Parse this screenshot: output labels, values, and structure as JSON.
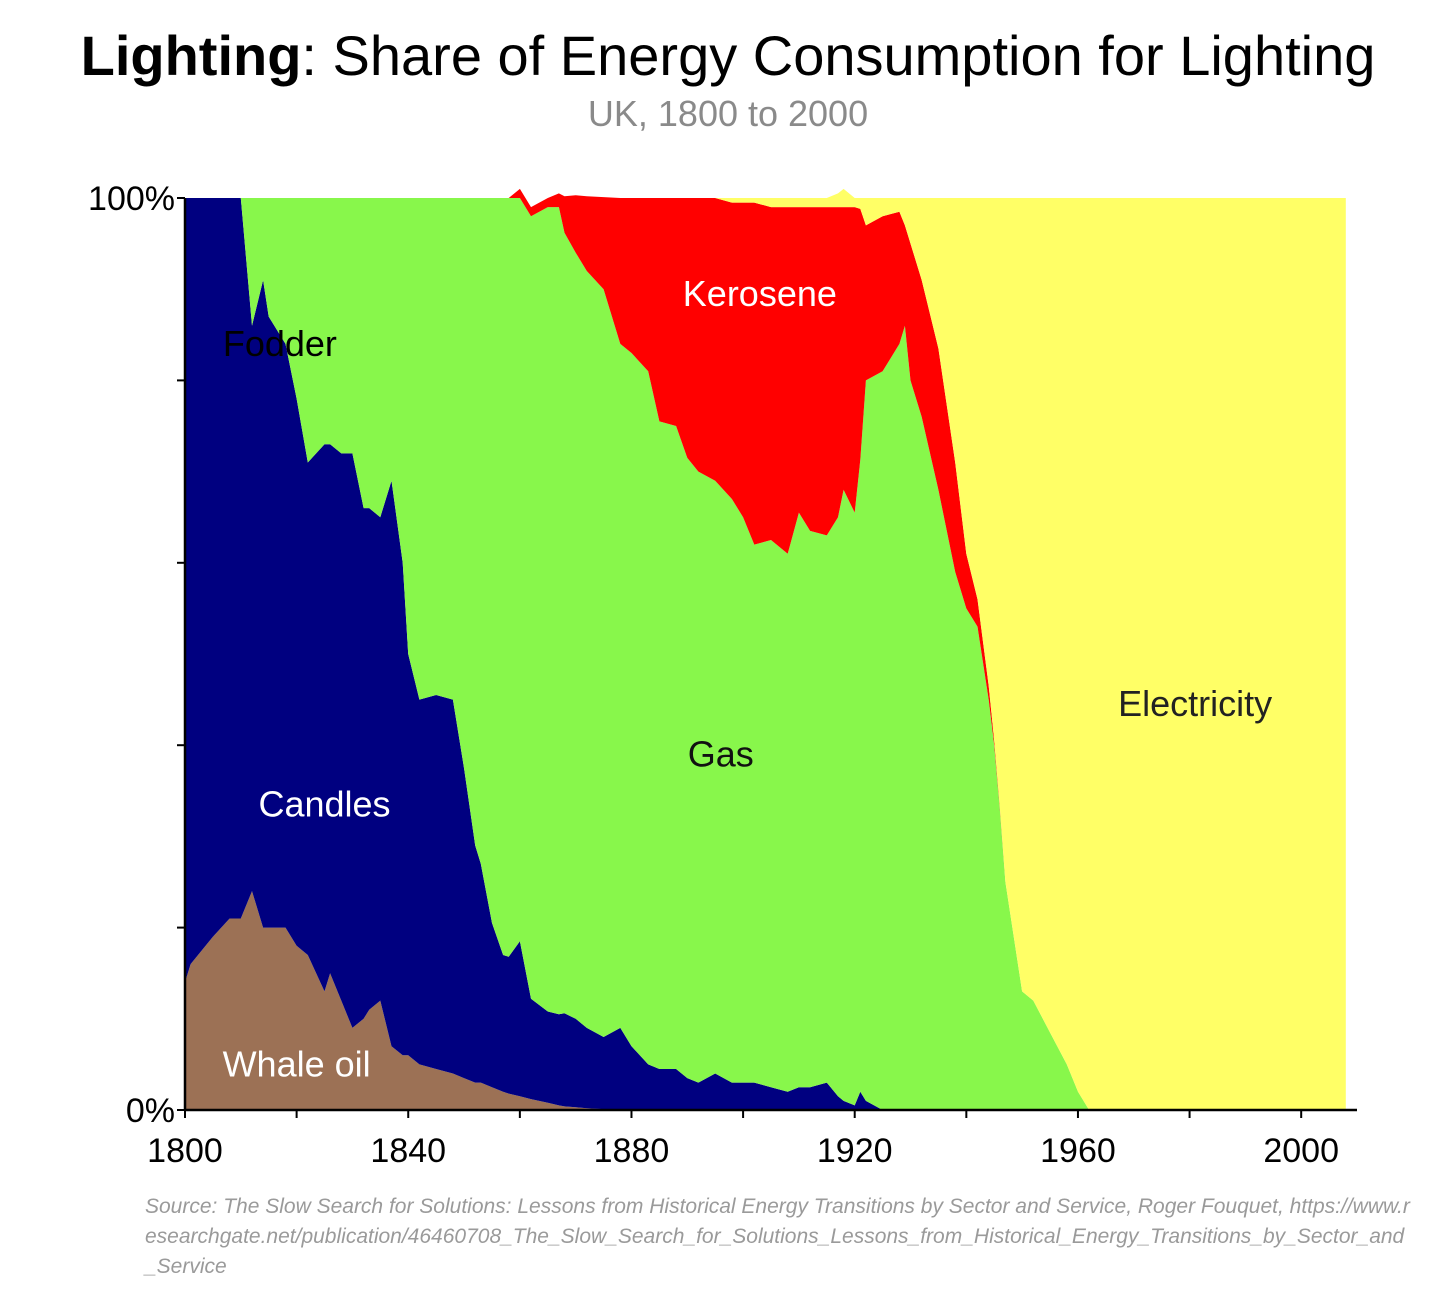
{
  "header": {
    "title_bold": "Lighting",
    "title_rest": ": Share of Energy Consumption for Lighting",
    "subtitle": "UK, 1800 to 2000"
  },
  "source": "Source: The Slow Search for Solutions: Lessons from Historical Energy Transitions by Sector and Service, Roger Fouquet, https://www.researchgate.net/publication/46460708_The_Slow_Search_for_Solutions_Lessons_from_Historical_Energy_Transitions_by_Sector_and_Service",
  "chart_data": {
    "type": "area",
    "stacked": true,
    "percent": true,
    "title": "Lighting: Share of Energy Consumption for Lighting",
    "subtitle": "UK, 1800 to 2000",
    "xlabel": "",
    "ylabel": "",
    "xlim": [
      1800,
      2010
    ],
    "ylim": [
      0,
      100
    ],
    "x_ticks": [
      1800,
      1840,
      1880,
      1920,
      1960,
      2000
    ],
    "x_minor_ticks": [
      1820,
      1860,
      1900,
      1940,
      1980
    ],
    "y_ticks": [
      0,
      100
    ],
    "y_tick_labels": [
      "0%",
      "100%"
    ],
    "y_minor_ticks": [
      20,
      40,
      60,
      80
    ],
    "x": [
      1800,
      1801,
      1805,
      1808,
      1810,
      1812,
      1814,
      1815,
      1818,
      1820,
      1822,
      1825,
      1826,
      1828,
      1830,
      1832,
      1833,
      1835,
      1837,
      1839,
      1840,
      1842,
      1845,
      1848,
      1850,
      1852,
      1853,
      1855,
      1857,
      1858,
      1860,
      1862,
      1865,
      1867,
      1868,
      1870,
      1872,
      1875,
      1878,
      1880,
      1883,
      1885,
      1888,
      1890,
      1892,
      1895,
      1898,
      1900,
      1902,
      1905,
      1908,
      1910,
      1912,
      1915,
      1917,
      1918,
      1920,
      1921,
      1922,
      1925,
      1928,
      1929,
      1930,
      1932,
      1935,
      1938,
      1940,
      1942,
      1944,
      1945,
      1946,
      1947,
      1950,
      1952,
      1955,
      1958,
      1960,
      1962,
      1965,
      1970,
      1980,
      1990,
      2000,
      2008
    ],
    "series": [
      {
        "name": "Whale oil",
        "color": "#9c7155",
        "values": [
          14,
          16,
          19,
          21,
          21,
          24,
          20,
          20,
          20,
          18,
          17,
          13,
          15,
          12,
          9,
          10,
          11,
          12,
          7,
          6,
          6,
          5,
          4.5,
          4,
          3.5,
          3,
          3,
          2.5,
          2,
          1.8,
          1.5,
          1.2,
          0.8,
          0.5,
          0.4,
          0.3,
          0.2,
          0.1,
          0,
          0,
          0,
          0,
          0,
          0,
          0,
          0,
          0,
          0,
          0,
          0,
          0,
          0,
          0,
          0,
          0,
          0,
          0,
          0,
          0,
          0,
          0,
          0,
          0,
          0,
          0,
          0,
          0,
          0,
          0,
          0,
          0,
          0,
          0,
          0,
          0,
          0,
          0,
          0,
          0,
          0,
          0,
          0,
          0,
          0
        ]
      },
      {
        "name": "Candles",
        "color": "#000080",
        "values": [
          86,
          84,
          81,
          79,
          79,
          62,
          71,
          67,
          64,
          60,
          54,
          60,
          58,
          60,
          63,
          56,
          55,
          53,
          62,
          54,
          44,
          40,
          41,
          41,
          34,
          26,
          24,
          18,
          15,
          15,
          17,
          11,
          10,
          10,
          10.2,
          9.7,
          8.8,
          7.9,
          9,
          7,
          5,
          4.5,
          4.5,
          3.5,
          3,
          4,
          3,
          3,
          3,
          2.5,
          2,
          2.5,
          2.5,
          3,
          1.5,
          1,
          0.5,
          2,
          1,
          0,
          0,
          0,
          0,
          0,
          0,
          0,
          0,
          0,
          0,
          0,
          0,
          0,
          0,
          0,
          0,
          0,
          0,
          0,
          0,
          0,
          0,
          0,
          0,
          0
        ]
      },
      {
        "name": "Fodder",
        "color": "#000080",
        "values": [
          0,
          0,
          0,
          0,
          0,
          0,
          0,
          0,
          0,
          0,
          0,
          0,
          0,
          0,
          0,
          0,
          0,
          0,
          0,
          0,
          0,
          0,
          0,
          0,
          0,
          0,
          0,
          0,
          0,
          0,
          0,
          0,
          0,
          0,
          0,
          0,
          0,
          0,
          0,
          0,
          0,
          0,
          0,
          0,
          0,
          0,
          0,
          0,
          0,
          0,
          0,
          0,
          0,
          0,
          0,
          0,
          0,
          0,
          0,
          0,
          0,
          0,
          0,
          0,
          0,
          0,
          0,
          0,
          0,
          0,
          0,
          0,
          0,
          0,
          0,
          0,
          0,
          0,
          0,
          0,
          0,
          0,
          0,
          0
        ]
      },
      {
        "name": "Gas",
        "color": "#88f74b",
        "values": [
          0,
          0,
          0,
          0,
          0,
          14,
          9,
          13,
          16,
          22,
          29,
          27,
          27,
          28,
          28,
          34,
          34,
          35,
          31,
          40,
          50,
          55,
          54.5,
          55,
          62.5,
          71,
          73,
          79.5,
          83,
          83.2,
          81.5,
          85.8,
          88.2,
          88.5,
          85.6,
          84,
          83,
          82,
          75,
          76,
          76,
          71,
          70.5,
          68,
          67,
          65,
          64,
          62,
          59,
          60,
          59,
          63,
          61,
          60,
          63.5,
          67,
          65,
          69.3,
          79,
          81,
          84,
          86,
          80,
          76,
          68,
          59,
          55,
          53,
          45,
          40,
          33,
          25,
          13,
          12,
          8.5,
          5,
          2,
          0,
          0,
          0,
          0,
          0,
          0,
          0
        ]
      },
      {
        "name": "Kerosene",
        "color": "#ff0000",
        "values": [
          0,
          0,
          0,
          0,
          0,
          0,
          0,
          0,
          0,
          0,
          0,
          0,
          0,
          0,
          0,
          0,
          0,
          0,
          0,
          0,
          0,
          0,
          0,
          0,
          0,
          0,
          0,
          0,
          0,
          0,
          1,
          1,
          1,
          1.5,
          4,
          6.3,
          8.2,
          10.1,
          16,
          17,
          19,
          24.5,
          25,
          28.5,
          30,
          31,
          32.5,
          34.5,
          37.5,
          36.5,
          38,
          33.5,
          35.5,
          36,
          34,
          31,
          33.5,
          27.5,
          17,
          17,
          14.5,
          11,
          15,
          15,
          15.5,
          12,
          6,
          3,
          1.5,
          0.5,
          0.2,
          0,
          0,
          0,
          0,
          0,
          0,
          0,
          0,
          0,
          0,
          0,
          0,
          0
        ]
      },
      {
        "name": "Electricity",
        "color": "#ffff66",
        "values": [
          0,
          0,
          0,
          0,
          0,
          0,
          0,
          0,
          0,
          0,
          0,
          0,
          0,
          0,
          0,
          0,
          0,
          0,
          0,
          0,
          0,
          0,
          0,
          0,
          0,
          0,
          0,
          0,
          0,
          0,
          0,
          0,
          0,
          0,
          0,
          0,
          0,
          0,
          0,
          0,
          0,
          0,
          0,
          0,
          0,
          0,
          0.5,
          0.5,
          0.5,
          1,
          1,
          1,
          1,
          1,
          1.5,
          2,
          1,
          1.2,
          3,
          2,
          1.5,
          3,
          5,
          9,
          16.5,
          29,
          39,
          44,
          53.5,
          59.5,
          66.8,
          75,
          87,
          88,
          91.5,
          95,
          98,
          100,
          100,
          100,
          100,
          100,
          100,
          100
        ]
      }
    ],
    "labels": [
      {
        "name": "fodder-label",
        "text": "Fodder",
        "x": 1817,
        "y": 84,
        "color": "#000000"
      },
      {
        "name": "kerosene-label",
        "text": "Kerosene",
        "x": 1903,
        "y": 89.5,
        "color": "#ffffff"
      },
      {
        "name": "electricity-label",
        "text": "Electricity",
        "x": 1981,
        "y": 44.5,
        "color": "#222222"
      },
      {
        "name": "gas-label",
        "text": "Gas",
        "x": 1896,
        "y": 39,
        "color": "#111111"
      },
      {
        "name": "candles-label",
        "text": "Candles",
        "x": 1825,
        "y": 33.5,
        "color": "#ffffff"
      },
      {
        "name": "whale-oil-label",
        "text": "Whale oil",
        "x": 1820,
        "y": 5,
        "color": "#ffffff"
      }
    ]
  }
}
